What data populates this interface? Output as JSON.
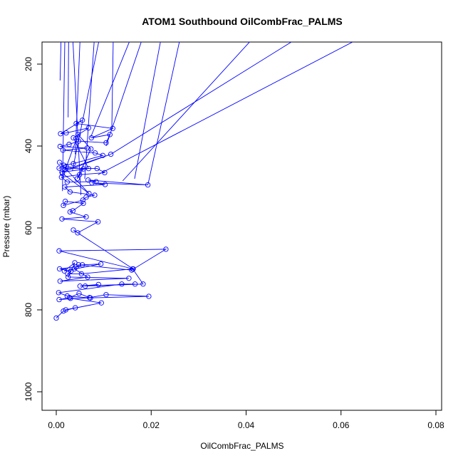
{
  "chart_data": {
    "type": "scatter",
    "title": "ATOM1 Southbound OilCombFrac_PALMS",
    "xlabel": "OilCombFrac_PALMS",
    "ylabel": "Pressure (mbar)",
    "xlim": [
      0.0,
      0.08
    ],
    "ylim": [
      1050,
      150
    ],
    "y_reversed": true,
    "x_ticks": [
      "0.00",
      "0.02",
      "0.04",
      "0.06",
      "0.08"
    ],
    "y_ticks": [
      "200",
      "400",
      "600",
      "800",
      "1000"
    ],
    "grid": false,
    "series_color": "#0000ff",
    "series": [
      {
        "x": [
          0.0,
          0.0015,
          0.004,
          0.002,
          0.0095,
          0.003,
          0.0195,
          0.0105,
          0.007,
          0.0006,
          0.0028,
          0.0048,
          0.0072,
          0.0023,
          0.0005,
          0.0138,
          0.0166,
          0.005,
          0.0089,
          0.0061,
          0.0183,
          0.0161,
          0.0053,
          0.0024,
          0.0031,
          0.0007,
          0.0042,
          0.0055,
          0.0094,
          0.0017,
          0.0039,
          0.0025,
          0.0153,
          0.0008,
          0.0066,
          0.0038,
          0.0047,
          0.0159,
          0.0231,
          0.0006,
          0.0162,
          0.0036,
          0.0045,
          0.0088,
          0.0012,
          0.0063,
          0.0029,
          0.0035,
          0.0057,
          0.0019,
          0.0015,
          0.0056,
          0.0063,
          0.0081,
          0.0029,
          0.0018,
          0.0103,
          0.0075,
          0.0193,
          0.0067,
          0.0084,
          0.0023,
          0.0011,
          0.0049,
          0.0102,
          0.0086,
          0.0006,
          0.0016,
          0.0036,
          0.0098,
          0.0082,
          0.0014,
          0.0065,
          0.0008,
          0.0027,
          0.0047,
          0.0105,
          0.0113,
          0.0074,
          0.0119,
          0.0042,
          0.0055,
          0.0009,
          0.0021,
          0.0068,
          0.0036,
          0.0068,
          0.0012,
          0.0115,
          0.0019,
          0.0046,
          0.0073,
          0.0044,
          0.0057,
          0.0021,
          0.0013,
          0.0069,
          0.0007
        ],
        "y": [
          820,
          803,
          795,
          800,
          783,
          772,
          767,
          763,
          770,
          775,
          770,
          760,
          771,
          766,
          758,
          737,
          737,
          742,
          738,
          742,
          737,
          700,
          712,
          712,
          705,
          700,
          695,
          690,
          688,
          705,
          685,
          720,
          723,
          730,
          720,
          700,
          690,
          703,
          652,
          656,
          700,
          605,
          612,
          585,
          578,
          573,
          561,
          558,
          540,
          535,
          545,
          532,
          525,
          520,
          512,
          500,
          494,
          490,
          495,
          483,
          487,
          488,
          476,
          470,
          465,
          455,
          454,
          447,
          443,
          423,
          417,
          410,
          405,
          401,
          396,
          388,
          392,
          372,
          380,
          357,
          345,
          337,
          370,
          368,
          356,
          380,
          455,
          464,
          420,
          458,
          372,
          407,
          480,
          456,
          450,
          467,
          516,
          440
        ]
      }
    ]
  }
}
